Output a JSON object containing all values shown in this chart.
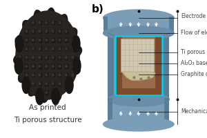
{
  "label_a_line1": "As printed",
  "label_a_line2": "Ti porous structure",
  "panel_b_label": "b)",
  "electrode_color": "#7a9eb8",
  "electrode_dark": "#5a7e98",
  "electrode_side": "#6a8eaa",
  "graphite_color": "#9a6a4a",
  "graphite_dark": "#7a4a2a",
  "cyan_border": "#00cfef",
  "sample_color": "#c8c0a0",
  "sample_grid": "#a8a088",
  "base_color": "#c0b888",
  "arrow_color": "#ffffff",
  "text_color": "#333333",
  "ann_color": "#444444",
  "font_size": 5.5,
  "label_font_size": 7.5,
  "b_label_size": 11
}
